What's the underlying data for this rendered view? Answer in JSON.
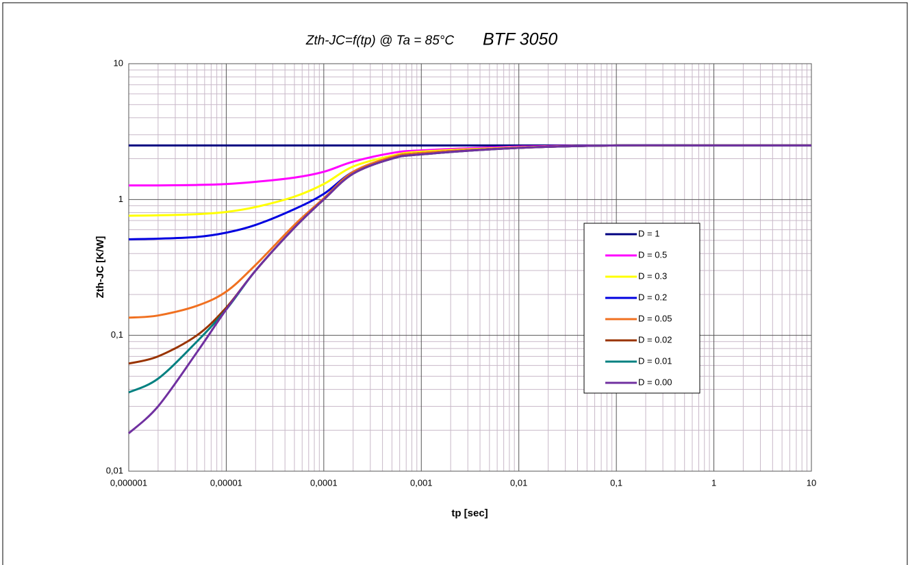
{
  "chart_data": {
    "type": "line",
    "title": "Zth-JC=f(tp) @ Ta = 85°C",
    "subtitle": "BTF 3050",
    "x_label": "tp [sec]",
    "y_label": "Zth-JC [K/W]",
    "x_scale": "log",
    "y_scale": "log",
    "grid": true,
    "minor_grid": true,
    "legend": "right",
    "xlim": [
      1e-06,
      10
    ],
    "ylim": [
      0.01,
      10
    ],
    "xticks": [
      {
        "value": 1e-06,
        "label": "0,000001"
      },
      {
        "value": 1e-05,
        "label": "0,00001"
      },
      {
        "value": 0.0001,
        "label": "0,0001"
      },
      {
        "value": 0.001,
        "label": "0,001"
      },
      {
        "value": 0.01,
        "label": "0,01"
      },
      {
        "value": 0.1,
        "label": "0,1"
      },
      1,
      10
    ],
    "yticks": [
      {
        "value": 0.01,
        "label": "0,01"
      },
      {
        "value": 0.1,
        "label": "0,1"
      },
      1,
      10
    ],
    "x": [
      1e-06,
      2e-06,
      5e-06,
      1e-05,
      2e-05,
      5e-05,
      0.0001,
      0.0002,
      0.0005,
      0.001,
      0.01,
      0.1,
      1,
      10
    ],
    "series": [
      {
        "name": "D = 1",
        "color": "#000080",
        "values": [
          2.5,
          2.5,
          2.5,
          2.5,
          2.5,
          2.5,
          2.5,
          2.5,
          2.5,
          2.5,
          2.5,
          2.5,
          2.5,
          2.5
        ]
      },
      {
        "name": "D = 0.5",
        "color": "#ff00ff",
        "values": [
          1.27,
          1.27,
          1.28,
          1.3,
          1.35,
          1.45,
          1.6,
          1.9,
          2.2,
          2.3,
          2.45,
          2.5,
          2.5,
          2.5
        ]
      },
      {
        "name": "D = 0.3",
        "color": "#ffff00",
        "values": [
          0.76,
          0.765,
          0.78,
          0.81,
          0.88,
          1.05,
          1.3,
          1.75,
          2.1,
          2.25,
          2.42,
          2.5,
          2.5,
          2.5
        ]
      },
      {
        "name": "D = 0.2",
        "color": "#0000e0",
        "values": [
          0.51,
          0.515,
          0.53,
          0.57,
          0.65,
          0.85,
          1.1,
          1.6,
          2.05,
          2.2,
          2.4,
          2.5,
          2.5,
          2.5
        ]
      },
      {
        "name": "D = 0.05",
        "color": "#f07020",
        "values": [
          0.135,
          0.14,
          0.165,
          0.21,
          0.33,
          0.65,
          1.02,
          1.6,
          2.05,
          2.2,
          2.4,
          2.5,
          2.5,
          2.5
        ]
      },
      {
        "name": "D = 0.02",
        "color": "#993300",
        "values": [
          0.062,
          0.07,
          0.1,
          0.16,
          0.3,
          0.62,
          1.0,
          1.55,
          2.0,
          2.15,
          2.4,
          2.5,
          2.5,
          2.5
        ]
      },
      {
        "name": "D = 0.01",
        "color": "#008080",
        "values": [
          0.038,
          0.048,
          0.09,
          0.155,
          0.3,
          0.62,
          1.0,
          1.55,
          2.0,
          2.15,
          2.4,
          2.5,
          2.5,
          2.5
        ]
      },
      {
        "name": "D = 0.00",
        "color": "#7030a0",
        "values": [
          0.019,
          0.03,
          0.075,
          0.155,
          0.3,
          0.62,
          1.0,
          1.55,
          2.0,
          2.15,
          2.4,
          2.5,
          2.5,
          2.5
        ]
      }
    ]
  }
}
